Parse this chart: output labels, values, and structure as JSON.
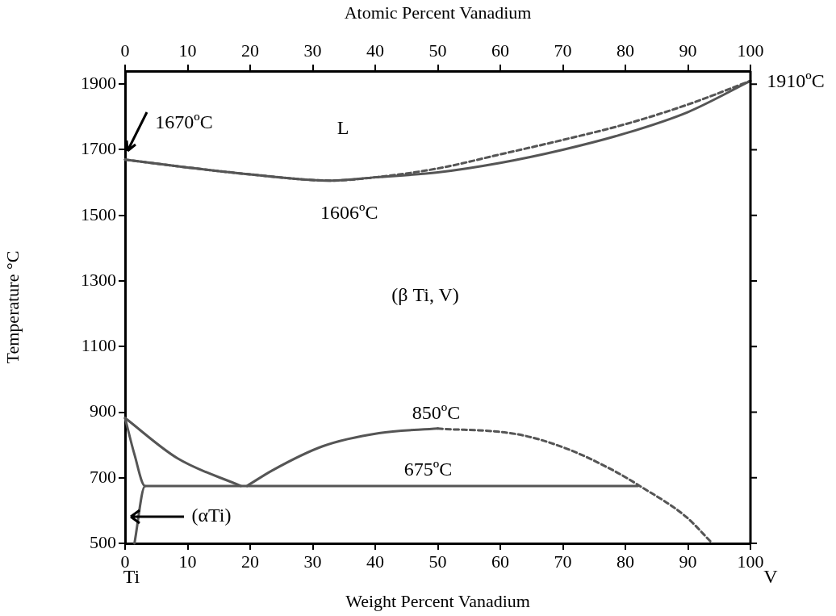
{
  "chart_data": {
    "type": "line",
    "xlabel": "Weight Percent Vanadium",
    "ylabel": "Temperature °C",
    "x2label": "Atomic Percent Vanadium",
    "xlim": [
      0,
      100
    ],
    "xticks": [
      0,
      10,
      20,
      30,
      40,
      50,
      60,
      70,
      80,
      90,
      100
    ],
    "x2lim": [
      0,
      100
    ],
    "x2ticks": [
      0,
      10,
      20,
      30,
      40,
      50,
      60,
      70,
      80,
      90,
      100
    ],
    "ylim": [
      500,
      1940
    ],
    "yticks": [
      500,
      700,
      900,
      1100,
      1300,
      1500,
      1700,
      1900
    ],
    "grid": false,
    "legend": false,
    "marker": "none",
    "series": [
      {
        "color": "#555555",
        "line_style": "solid",
        "x": [
          0,
          10,
          20,
          33,
          40,
          50,
          60,
          70,
          80,
          90,
          100
        ],
        "values": [
          1670,
          1646,
          1625,
          1606,
          1616,
          1631,
          1660,
          1700,
          1750,
          1815,
          1910
        ]
      },
      {
        "color": "#555555",
        "line_style": "dashed",
        "x": [
          0,
          10,
          20,
          33,
          40,
          50,
          60,
          70,
          80,
          90,
          100
        ],
        "values": [
          1670,
          1646,
          1625,
          1606,
          1616,
          1643,
          1686,
          1730,
          1778,
          1838,
          1910
        ]
      },
      {
        "color": "#555555",
        "line_style": "solid",
        "x": [
          0,
          8.4,
          18.5
        ],
        "values": [
          882,
          759,
          675
        ]
      },
      {
        "color": "#555555",
        "line_style": "solid",
        "x": [
          0,
          1.5,
          3.2,
          1.5
        ],
        "values": [
          882,
          771,
          675,
          500
        ]
      },
      {
        "color": "#555555",
        "line_style": "solid",
        "x": [
          3.2,
          82
        ],
        "values": [
          675,
          675
        ]
      },
      {
        "color": "#555555",
        "line_style": "solid",
        "x": [
          19.5,
          23.5,
          31.6,
          40.6,
          50
        ],
        "values": [
          675,
          722,
          796,
          836,
          850
        ]
      },
      {
        "color": "#555555",
        "line_style": "dashed",
        "x": [
          50,
          62.6,
          70.3,
          78.1,
          82.3,
          89.7,
          93.9
        ],
        "values": [
          850,
          833,
          791,
          722,
          675,
          581,
          500
        ]
      }
    ],
    "annotations": [
      {
        "text": "1670ºC",
        "x": 0,
        "y": 1670
      },
      "L",
      {
        "text": "1606ºC",
        "x": 33,
        "y": 1606
      },
      {
        "text": "1910ºC",
        "x": 100,
        "y": 1910
      },
      "(β Ti, V)",
      {
        "text": "850ºC",
        "x": 50,
        "y": 850
      },
      {
        "text": "675ºC",
        "x": 50,
        "y": 675
      },
      "(αTi)",
      "Ti",
      "V"
    ]
  }
}
